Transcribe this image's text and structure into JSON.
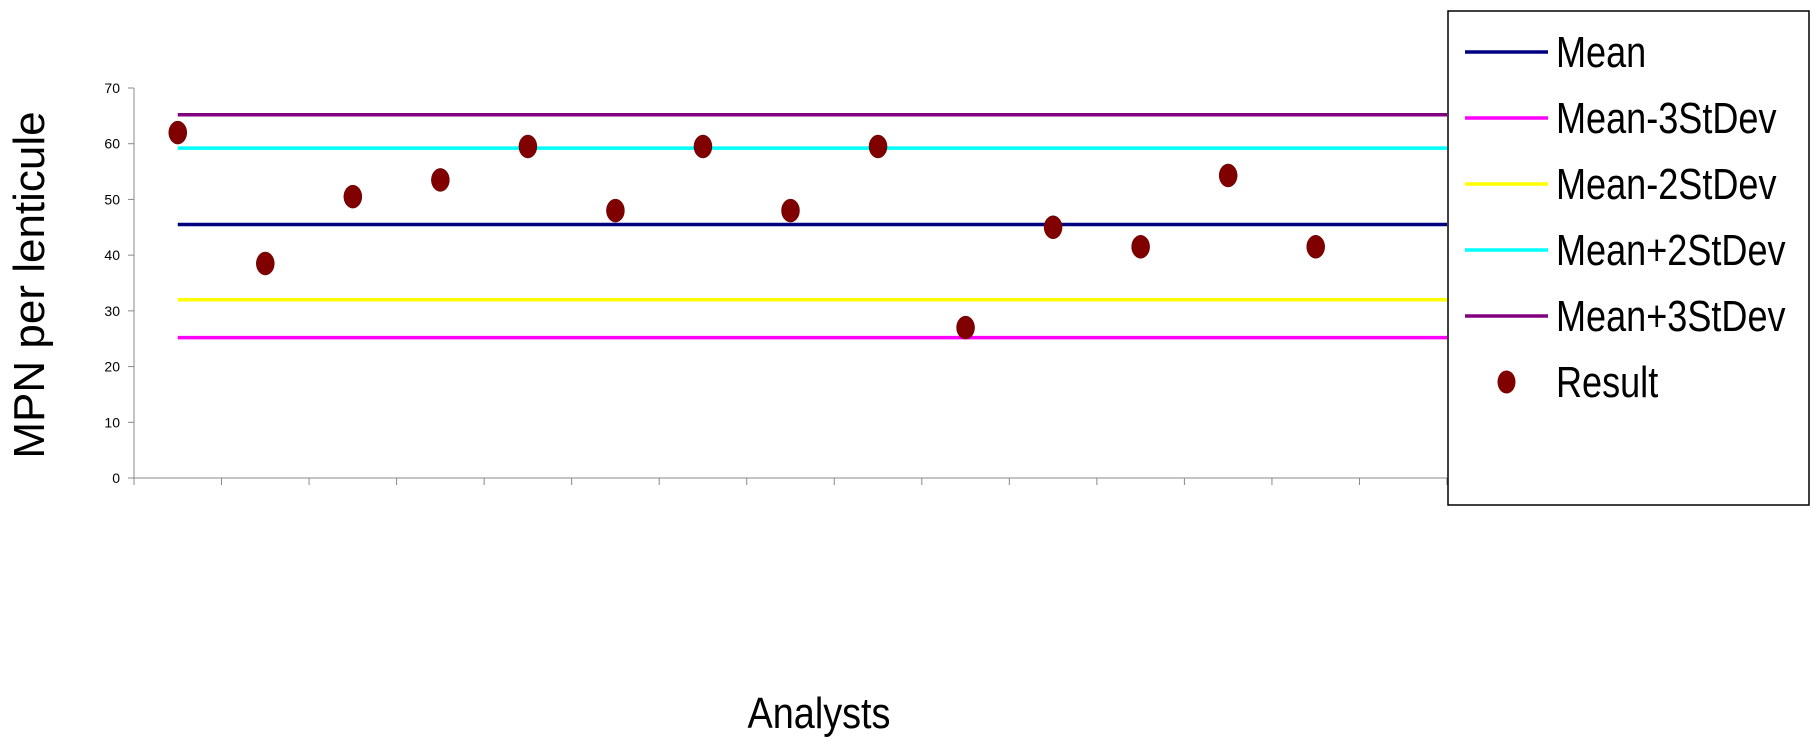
{
  "chart_data": {
    "type": "scatter",
    "title": "",
    "xlabel": "Analysts",
    "ylabel": "MPN per lenticule",
    "ylim": [
      0,
      70
    ],
    "yticks": [
      0,
      10,
      20,
      30,
      40,
      50,
      60,
      70
    ],
    "grid": false,
    "legend_position": "right",
    "categories": [
      "",
      "",
      "",
      "",
      "",
      "",
      "",
      "",
      "",
      "",
      "",
      "",
      "",
      "",
      ""
    ],
    "series": [
      {
        "name": "Mean",
        "kind": "line",
        "value": 45.5,
        "color": "#000080"
      },
      {
        "name": "Mean-3StDev",
        "kind": "line",
        "value": 25.2,
        "color": "#ff00ff"
      },
      {
        "name": "Mean-2StDev",
        "kind": "line",
        "value": 32.0,
        "color": "#ffff00"
      },
      {
        "name": "Mean+2StDev",
        "kind": "line",
        "value": 59.2,
        "color": "#00ffff"
      },
      {
        "name": "Mean+3StDev",
        "kind": "line",
        "value": 65.2,
        "color": "#800080"
      },
      {
        "name": "Result",
        "kind": "points",
        "color": "#800000",
        "values": [
          62,
          38.5,
          50.5,
          53.5,
          59.5,
          48,
          59.5,
          48,
          59.5,
          27,
          45,
          41.5,
          54.3,
          41.5,
          null
        ]
      }
    ]
  }
}
